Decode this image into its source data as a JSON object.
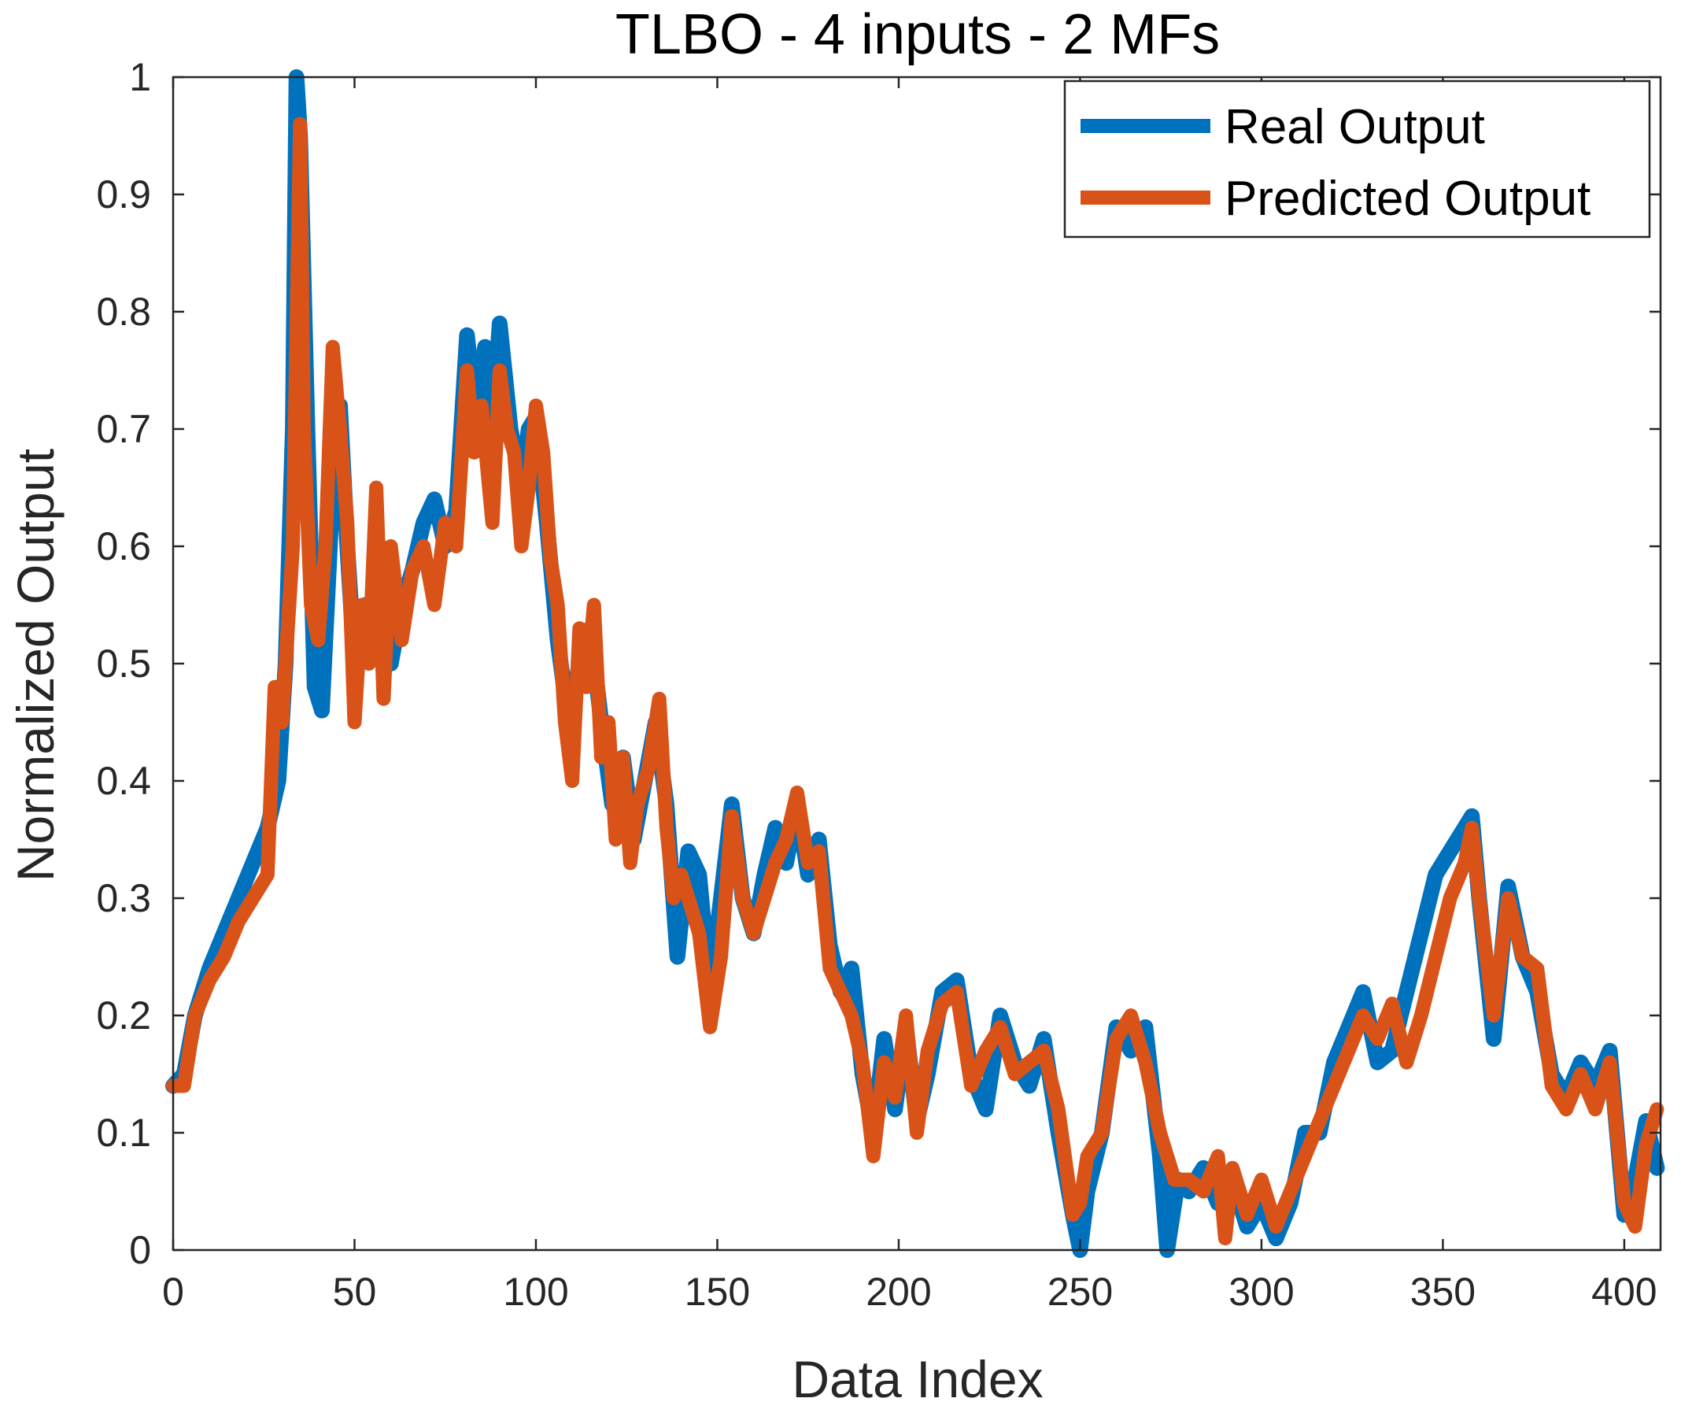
{
  "chart_data": {
    "type": "line",
    "title": "TLBO - 4 inputs - 2 MFs",
    "xlabel": "Data Index",
    "ylabel": "Normalized Output",
    "xlim": [
      0,
      410
    ],
    "ylim": [
      0,
      1
    ],
    "xticks": [
      "0",
      "50",
      "100",
      "150",
      "200",
      "250",
      "300",
      "350",
      "400"
    ],
    "xtick_values": [
      0,
      50,
      100,
      150,
      200,
      250,
      300,
      350,
      400
    ],
    "yticks": [
      "0",
      "0.1",
      "0.2",
      "0.3",
      "0.4",
      "0.5",
      "0.6",
      "0.7",
      "0.8",
      "0.9",
      "1"
    ],
    "ytick_values": [
      0,
      0.1,
      0.2,
      0.3,
      0.4,
      0.5,
      0.6,
      0.7,
      0.8,
      0.9,
      1
    ],
    "grid": false,
    "legend_position": "top-right",
    "series": [
      {
        "name": "Real Output",
        "color": "#0072BD",
        "x": [
          0,
          3,
          6,
          10,
          14,
          18,
          22,
          26,
          29,
          31,
          33,
          34,
          35,
          37,
          39,
          41,
          44,
          46,
          48,
          50,
          53,
          55,
          57,
          60,
          63,
          66,
          69,
          72,
          75,
          78,
          81,
          83,
          86,
          88,
          90,
          93,
          96,
          98,
          100,
          103,
          106,
          109,
          112,
          115,
          118,
          121,
          124,
          127,
          130,
          133,
          136,
          139,
          142,
          145,
          148,
          151,
          154,
          157,
          160,
          163,
          166,
          169,
          172,
          175,
          178,
          181,
          184,
          187,
          190,
          193,
          196,
          199,
          202,
          205,
          208,
          212,
          216,
          220,
          224,
          228,
          232,
          236,
          240,
          244,
          248,
          250,
          252,
          256,
          260,
          264,
          268,
          272,
          274,
          277,
          280,
          284,
          288,
          292,
          296,
          300,
          304,
          308,
          312,
          316,
          320,
          324,
          328,
          332,
          336,
          340,
          344,
          348,
          352,
          356,
          358,
          360,
          364,
          368,
          372,
          376,
          380,
          384,
          388,
          392,
          396,
          400,
          403,
          406,
          409
        ],
        "y": [
          0.14,
          0.15,
          0.2,
          0.24,
          0.27,
          0.3,
          0.33,
          0.36,
          0.4,
          0.5,
          0.7,
          1.0,
          0.95,
          0.7,
          0.48,
          0.46,
          0.65,
          0.72,
          0.6,
          0.5,
          0.55,
          0.52,
          0.6,
          0.5,
          0.55,
          0.58,
          0.62,
          0.64,
          0.6,
          0.63,
          0.78,
          0.72,
          0.77,
          0.7,
          0.79,
          0.7,
          0.65,
          0.7,
          0.71,
          0.62,
          0.52,
          0.45,
          0.5,
          0.53,
          0.45,
          0.38,
          0.42,
          0.35,
          0.4,
          0.45,
          0.38,
          0.25,
          0.34,
          0.32,
          0.22,
          0.3,
          0.38,
          0.3,
          0.27,
          0.32,
          0.36,
          0.33,
          0.38,
          0.32,
          0.35,
          0.26,
          0.22,
          0.24,
          0.15,
          0.1,
          0.18,
          0.12,
          0.19,
          0.11,
          0.15,
          0.22,
          0.23,
          0.15,
          0.12,
          0.2,
          0.16,
          0.14,
          0.18,
          0.1,
          0.03,
          0.0,
          0.05,
          0.1,
          0.19,
          0.17,
          0.19,
          0.08,
          0.0,
          0.06,
          0.05,
          0.07,
          0.04,
          0.06,
          0.02,
          0.04,
          0.01,
          0.04,
          0.1,
          0.1,
          0.16,
          0.19,
          0.22,
          0.16,
          0.17,
          0.22,
          0.27,
          0.32,
          0.34,
          0.36,
          0.37,
          0.3,
          0.18,
          0.31,
          0.25,
          0.22,
          0.15,
          0.13,
          0.16,
          0.14,
          0.17,
          0.03,
          0.06,
          0.11,
          0.07
        ]
      },
      {
        "name": "Predicted Output",
        "color": "#D95319",
        "x": [
          0,
          3,
          6,
          10,
          14,
          18,
          22,
          26,
          28,
          30,
          33,
          35,
          36,
          38,
          40,
          42,
          44,
          46,
          48,
          50,
          52,
          54,
          56,
          58,
          60,
          63,
          66,
          69,
          72,
          75,
          78,
          81,
          83,
          85,
          88,
          90,
          92,
          94,
          96,
          98,
          100,
          102,
          104,
          106,
          108,
          110,
          112,
          114,
          116,
          118,
          120,
          122,
          124,
          126,
          128,
          131,
          134,
          136,
          138,
          140,
          142,
          145,
          148,
          151,
          154,
          157,
          160,
          163,
          166,
          169,
          172,
          175,
          178,
          181,
          184,
          187,
          190,
          193,
          196,
          199,
          202,
          205,
          208,
          212,
          216,
          220,
          224,
          228,
          232,
          236,
          240,
          244,
          248,
          250,
          252,
          256,
          260,
          264,
          268,
          272,
          276,
          280,
          284,
          288,
          290,
          292,
          296,
          300,
          304,
          308,
          312,
          316,
          320,
          324,
          328,
          332,
          336,
          340,
          344,
          348,
          352,
          356,
          358,
          360,
          364,
          368,
          372,
          376,
          380,
          384,
          388,
          392,
          396,
          400,
          403,
          406,
          409
        ],
        "y": [
          0.14,
          0.14,
          0.2,
          0.23,
          0.25,
          0.28,
          0.3,
          0.32,
          0.48,
          0.45,
          0.6,
          0.96,
          0.7,
          0.55,
          0.52,
          0.6,
          0.77,
          0.7,
          0.62,
          0.45,
          0.55,
          0.5,
          0.65,
          0.47,
          0.6,
          0.52,
          0.58,
          0.6,
          0.55,
          0.62,
          0.6,
          0.75,
          0.68,
          0.72,
          0.62,
          0.75,
          0.7,
          0.68,
          0.6,
          0.65,
          0.72,
          0.68,
          0.59,
          0.55,
          0.45,
          0.4,
          0.53,
          0.48,
          0.55,
          0.42,
          0.45,
          0.35,
          0.42,
          0.33,
          0.38,
          0.41,
          0.47,
          0.36,
          0.3,
          0.32,
          0.3,
          0.27,
          0.19,
          0.25,
          0.37,
          0.3,
          0.27,
          0.3,
          0.33,
          0.35,
          0.39,
          0.33,
          0.34,
          0.24,
          0.22,
          0.2,
          0.16,
          0.08,
          0.16,
          0.13,
          0.2,
          0.1,
          0.17,
          0.21,
          0.22,
          0.14,
          0.17,
          0.19,
          0.15,
          0.16,
          0.17,
          0.12,
          0.03,
          0.04,
          0.08,
          0.1,
          0.18,
          0.2,
          0.16,
          0.1,
          0.06,
          0.06,
          0.05,
          0.08,
          0.01,
          0.07,
          0.03,
          0.06,
          0.02,
          0.05,
          0.08,
          0.11,
          0.14,
          0.17,
          0.2,
          0.18,
          0.21,
          0.16,
          0.2,
          0.25,
          0.3,
          0.33,
          0.36,
          0.3,
          0.2,
          0.3,
          0.25,
          0.24,
          0.14,
          0.12,
          0.15,
          0.12,
          0.16,
          0.04,
          0.02,
          0.09,
          0.12
        ]
      }
    ]
  }
}
